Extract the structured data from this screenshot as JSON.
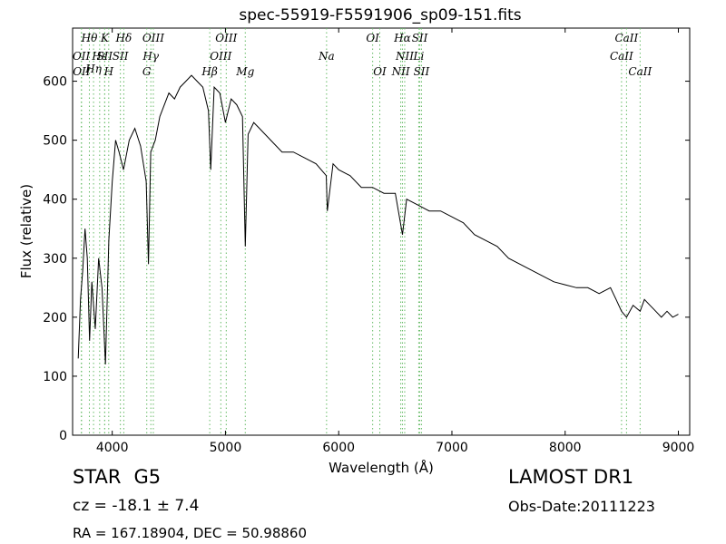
{
  "chart_data": {
    "type": "line",
    "title": "spec-55919-F5591906_sp09-151.fits",
    "xlabel": "Wavelength (Å)",
    "ylabel": "Flux (relative)",
    "xlim": [
      3650,
      9100
    ],
    "ylim": [
      0,
      690
    ],
    "xticks": [
      4000,
      5000,
      6000,
      7000,
      8000,
      9000
    ],
    "yticks": [
      0,
      100,
      200,
      300,
      400,
      500,
      600
    ],
    "grid": false,
    "line_color": "#000000",
    "marker_color": "#66bb66",
    "spectrum": {
      "x": [
        3700,
        3720,
        3740,
        3760,
        3780,
        3800,
        3820,
        3850,
        3880,
        3910,
        3940,
        3970,
        4000,
        4030,
        4060,
        4100,
        4150,
        4200,
        4250,
        4300,
        4320,
        4340,
        4380,
        4420,
        4460,
        4500,
        4550,
        4600,
        4650,
        4700,
        4750,
        4800,
        4850,
        4870,
        4900,
        4950,
        5000,
        5050,
        5100,
        5150,
        5175,
        5200,
        5250,
        5300,
        5400,
        5500,
        5600,
        5700,
        5800,
        5890,
        5900,
        5950,
        6000,
        6100,
        6200,
        6300,
        6400,
        6500,
        6563,
        6600,
        6700,
        6800,
        6900,
        7000,
        7100,
        7200,
        7300,
        7400,
        7500,
        7600,
        7700,
        7800,
        7900,
        8000,
        8100,
        8200,
        8300,
        8400,
        8450,
        8498,
        8542,
        8600,
        8662,
        8700,
        8750,
        8800,
        8850,
        8900,
        8950,
        9000
      ],
      "y": [
        130,
        230,
        280,
        350,
        300,
        160,
        260,
        180,
        300,
        250,
        120,
        330,
        430,
        500,
        480,
        450,
        500,
        520,
        490,
        430,
        290,
        480,
        500,
        540,
        560,
        580,
        570,
        590,
        600,
        610,
        600,
        590,
        550,
        450,
        590,
        580,
        530,
        570,
        560,
        540,
        320,
        510,
        530,
        520,
        500,
        480,
        480,
        470,
        460,
        440,
        380,
        460,
        450,
        440,
        420,
        420,
        410,
        410,
        340,
        400,
        390,
        380,
        380,
        370,
        360,
        340,
        330,
        320,
        300,
        290,
        280,
        270,
        260,
        255,
        250,
        250,
        240,
        250,
        230,
        210,
        200,
        220,
        210,
        230,
        220,
        210,
        200,
        210,
        200,
        205
      ]
    },
    "lines": [
      {
        "name": "OII",
        "x": 3727,
        "row": 2
      },
      {
        "name": "OII",
        "x": 3729,
        "row": 3
      },
      {
        "name": "Hθ",
        "x": 3798,
        "row": 1
      },
      {
        "name": "Hη",
        "x": 3835,
        "row": 2.7
      },
      {
        "name": "Hε",
        "x": 3889,
        "row": 2
      },
      {
        "name": "K",
        "x": 3934,
        "row": 1
      },
      {
        "name": "SII",
        "x": 3933,
        "row": 2
      },
      {
        "name": "H",
        "x": 3969,
        "row": 3
      },
      {
        "name": "Hδ",
        "x": 4102,
        "row": 1
      },
      {
        "name": "SII",
        "x": 4072,
        "row": 2
      },
      {
        "name": "G",
        "x": 4305,
        "row": 3
      },
      {
        "name": "Hγ",
        "x": 4341,
        "row": 1.9
      },
      {
        "name": "OIII",
        "x": 4363,
        "row": 1
      },
      {
        "name": "Hβ",
        "x": 4861,
        "row": 3
      },
      {
        "name": "OIII",
        "x": 4959,
        "row": 2
      },
      {
        "name": "OIII",
        "x": 5007,
        "row": 1
      },
      {
        "name": "Mg",
        "x": 5175,
        "row": 3
      },
      {
        "name": "Na",
        "x": 5893,
        "row": 2
      },
      {
        "name": "OI",
        "x": 6300,
        "row": 1
      },
      {
        "name": "OI",
        "x": 6363,
        "row": 3
      },
      {
        "name": "NII",
        "x": 6548,
        "row": 3
      },
      {
        "name": "Hα",
        "x": 6563,
        "row": 1
      },
      {
        "name": "NII",
        "x": 6583,
        "row": 2
      },
      {
        "name": "SII",
        "x": 6716,
        "row": 1
      },
      {
        "name": "Li",
        "x": 6707,
        "row": 2
      },
      {
        "name": "SII",
        "x": 6731,
        "row": 3
      },
      {
        "name": "CaII",
        "x": 8498,
        "row": 2
      },
      {
        "name": "CaII",
        "x": 8542,
        "row": 1
      },
      {
        "name": "CaII",
        "x": 8662,
        "row": 3
      }
    ]
  },
  "info": {
    "object_type": "STAR",
    "subclass": "G5",
    "cz": "cz = -18.1 ± 7.4",
    "radec": "RA = 167.18904, DEC = 50.98860",
    "survey": "LAMOST DR1",
    "obs_date": "Obs-Date:20111223"
  }
}
